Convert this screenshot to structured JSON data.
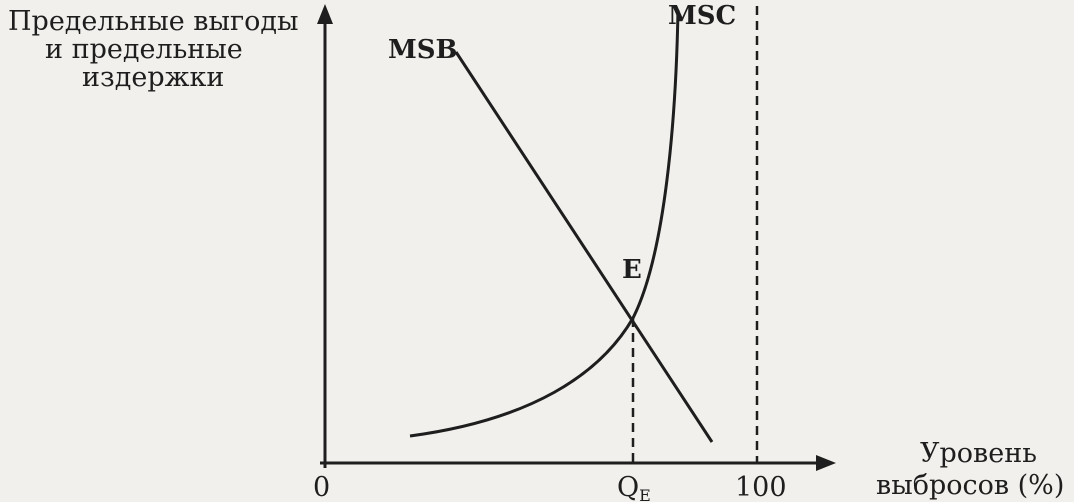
{
  "y_axis_label": [
    "Предельные выгоды",
    "и предельные",
    "издержки"
  ],
  "x_axis_label": [
    "Уровень",
    "выбросов (%)"
  ],
  "curves": {
    "msc": "MSC",
    "msb": "MSB"
  },
  "equilibrium": "E",
  "origin": "0",
  "q_label": {
    "main": "Q",
    "sub": "E"
  },
  "max_label": "100"
}
